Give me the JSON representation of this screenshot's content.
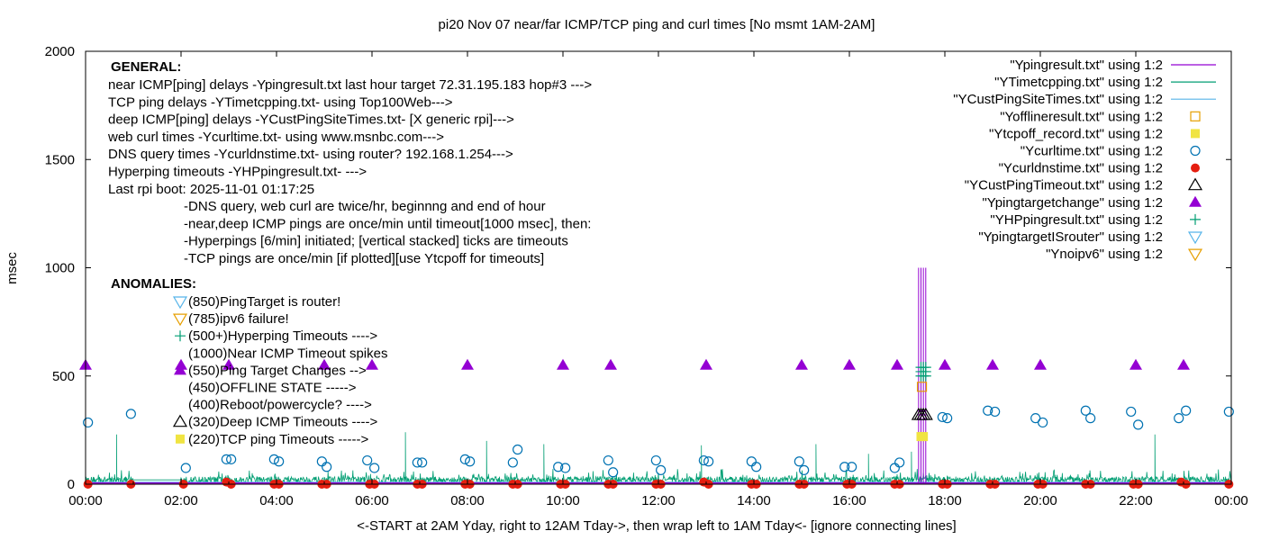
{
  "chart_data": {
    "type": "scatter",
    "title": "pi20 Nov 07  near/far ICMP/TCP ping and curl times [No msmt 1AM-2AM]",
    "xlabel": "<-START at 2AM Yday, right to 12AM Tday->, then wrap left to 1AM Tday<- [ignore connecting lines]",
    "ylabel": "msec",
    "xlim": [
      0,
      24
    ],
    "ylim": [
      0,
      2000
    ],
    "x_ticks": [
      {
        "v": 0,
        "label": "00:00"
      },
      {
        "v": 2,
        "label": "02:00"
      },
      {
        "v": 4,
        "label": "04:00"
      },
      {
        "v": 6,
        "label": "06:00"
      },
      {
        "v": 8,
        "label": "08:00"
      },
      {
        "v": 10,
        "label": "10:00"
      },
      {
        "v": 12,
        "label": "12:00"
      },
      {
        "v": 14,
        "label": "14:00"
      },
      {
        "v": 16,
        "label": "16:00"
      },
      {
        "v": 18,
        "label": "18:00"
      },
      {
        "v": 20,
        "label": "20:00"
      },
      {
        "v": 22,
        "label": "22:00"
      },
      {
        "v": 24,
        "label": "00:00"
      }
    ],
    "y_ticks": [
      {
        "v": 0,
        "label": "0"
      },
      {
        "v": 500,
        "label": "500"
      },
      {
        "v": 1000,
        "label": "1000"
      },
      {
        "v": 1500,
        "label": "1500"
      },
      {
        "v": 2000,
        "label": "2000"
      }
    ],
    "grid": false,
    "legend_position": "top-right",
    "legend": [
      {
        "name": "\"Ypingresult.txt\" using 1:2",
        "style": "line",
        "color": "#9400d3"
      },
      {
        "name": "\"YTimetcpping.txt\" using 1:2",
        "style": "line",
        "color": "#009e73"
      },
      {
        "name": "\"YCustPingSiteTimes.txt\" using 1:2",
        "style": "line",
        "color": "#56b4e9"
      },
      {
        "name": "\"Yofflineresult.txt\" using 1:2",
        "style": "open-square",
        "color": "#e69f00"
      },
      {
        "name": "\"Ytcpoff_record.txt\" using 1:2",
        "style": "filled-square",
        "color": "#f0e442"
      },
      {
        "name": "\"Ycurltime.txt\" using 1:2",
        "style": "open-circle",
        "color": "#0072b2"
      },
      {
        "name": "\"Ycurldnstime.txt\" using 1:2",
        "style": "filled-circle",
        "color": "#e51e10"
      },
      {
        "name": "\"YCustPingTimeout.txt\" using 1:2",
        "style": "open-triangle",
        "color": "#000000"
      },
      {
        "name": "\"Ypingtargetchange\" using 1:2",
        "style": "filled-triangle",
        "color": "#9400d3"
      },
      {
        "name": "\"YHPpingresult.txt\" using 1:2",
        "style": "plus",
        "color": "#009e73"
      },
      {
        "name": "\"YpingtargetISrouter\" using 1:2",
        "style": "open-triangle-down",
        "color": "#56b4e9"
      },
      {
        "name": "\"Ynoipv6\" using 1:2",
        "style": "open-triangle-down",
        "color": "#e69f00"
      }
    ],
    "series": [
      {
        "name": "\"Ypingtargetchange\" using 1:2",
        "marker": "filled-triangle",
        "color": "#9400d3",
        "x": [
          0,
          2,
          3,
          5,
          6,
          8,
          10,
          11,
          13,
          15,
          16,
          17,
          18,
          19,
          20,
          22,
          23
        ],
        "y": [
          550,
          550,
          550,
          550,
          550,
          550,
          550,
          550,
          550,
          550,
          550,
          550,
          550,
          550,
          550,
          550,
          550
        ]
      },
      {
        "name": "\"Ycurltime.txt\" using 1:2",
        "marker": "open-circle",
        "color": "#0072b2",
        "x": [
          0.05,
          0.95,
          2.1,
          2.95,
          3.05,
          3.95,
          4.05,
          4.95,
          5.05,
          5.9,
          6.05,
          6.95,
          7.05,
          7.95,
          8.05,
          8.95,
          9.05,
          9.9,
          10.05,
          10.95,
          11.05,
          11.95,
          12.05,
          12.95,
          13.05,
          13.95,
          14.05,
          14.95,
          15.05,
          15.9,
          16.05,
          16.95,
          17.05,
          17.95,
          18.05,
          18.9,
          19.05,
          19.9,
          20.05,
          20.95,
          21.05,
          21.9,
          22.05,
          22.9,
          23.05,
          23.95
        ],
        "y": [
          285,
          325,
          75,
          115,
          115,
          115,
          105,
          105,
          80,
          110,
          75,
          100,
          100,
          115,
          105,
          100,
          160,
          80,
          75,
          110,
          55,
          110,
          65,
          110,
          105,
          105,
          80,
          105,
          65,
          80,
          80,
          75,
          100,
          310,
          305,
          340,
          335,
          305,
          285,
          340,
          305,
          335,
          275,
          305,
          340,
          335
        ]
      },
      {
        "name": "\"Ycurldnstime.txt\" using 1:2",
        "marker": "filled-circle",
        "color": "#e51e10",
        "x": [
          0.05,
          0.95,
          2.05,
          2.95,
          3.05,
          3.95,
          4.05,
          4.95,
          5.05,
          5.95,
          6.05,
          6.95,
          7.05,
          7.95,
          8.05,
          8.95,
          9.05,
          9.95,
          10.05,
          10.95,
          11.05,
          11.95,
          12.05,
          12.95,
          13.05,
          13.95,
          14.05,
          14.95,
          15.05,
          15.95,
          16.05,
          16.95,
          17.05,
          17.95,
          18.05,
          18.95,
          19.05,
          19.95,
          20.05,
          20.95,
          21.05,
          21.95,
          22.05,
          22.95,
          23.05,
          23.95
        ],
        "y": [
          0,
          0,
          0,
          10,
          0,
          0,
          0,
          0,
          0,
          0,
          0,
          0,
          0,
          0,
          0,
          0,
          0,
          0,
          0,
          0,
          0,
          0,
          0,
          10,
          0,
          0,
          0,
          0,
          0,
          0,
          0,
          0,
          0,
          0,
          0,
          0,
          0,
          0,
          0,
          0,
          0,
          0,
          0,
          10,
          0,
          0
        ]
      },
      {
        "name": "\"YCustPingTimeout.txt\" using 1:2",
        "marker": "open-triangle",
        "color": "#000000",
        "x": [
          17.45,
          17.5,
          17.55,
          17.6
        ],
        "y": [
          320,
          320,
          320,
          320
        ]
      },
      {
        "name": "\"YHPpingresult.txt\" using 1:2",
        "marker": "plus",
        "color": "#009e73",
        "x": [
          17.5,
          17.5,
          17.5,
          17.55,
          17.55,
          17.55,
          17.6,
          17.6,
          17.6
        ],
        "y": [
          500,
          520,
          540,
          500,
          520,
          540,
          500,
          520,
          540
        ]
      },
      {
        "name": "\"Ytcpoff_record.txt\" using 1:2",
        "marker": "filled-square",
        "color": "#f0e442",
        "x": [
          17.5,
          17.55
        ],
        "y": [
          220,
          220
        ]
      },
      {
        "name": "\"Yofflineresult.txt\" using 1:2",
        "marker": "open-square",
        "color": "#e69f00",
        "x": [
          17.52
        ],
        "y": [
          450
        ]
      }
    ],
    "ping_spike_x": [
      17.45,
      17.5,
      17.55,
      17.6
    ],
    "ping_spike_ylim": [
      0,
      1000
    ],
    "ping_baseline_y": 5,
    "tcp_noise": {
      "xlim": [
        0,
        24
      ],
      "gap": [
        1,
        2
      ],
      "baseline": 20,
      "min": 0,
      "max": 80,
      "spikes": [
        {
          "x": 0.65,
          "y": 230
        },
        {
          "x": 6.7,
          "y": 240
        },
        {
          "x": 8.4,
          "y": 200
        },
        {
          "x": 9.6,
          "y": 185
        },
        {
          "x": 12.9,
          "y": 180
        },
        {
          "x": 15.3,
          "y": 185
        },
        {
          "x": 16.4,
          "y": 140
        },
        {
          "x": 17.3,
          "y": 150
        },
        {
          "x": 22.4,
          "y": 230
        }
      ]
    }
  },
  "annotations": {
    "general_title": "GENERAL:",
    "general_lines": [
      "near ICMP[ping] delays -Ypingresult.txt last hour target 72.31.195.183 hop#3 --->",
      "TCP ping delays -YTimetcpping.txt- using Top100Web--->",
      "deep ICMP[ping] delays -YCustPingSiteTimes.txt- [X generic rpi]--->",
      "web curl times -Ycurltime.txt- using www.msnbc.com--->",
      "DNS query times -Ycurldnstime.txt- using router? 192.168.1.254--->",
      "Hyperping timeouts -YHPpingresult.txt- --->",
      "Last rpi boot: 2025-11-01 01:17:25"
    ],
    "general_notes": [
      "-DNS query, web curl are twice/hr, beginnng and end of hour",
      "-near,deep ICMP pings are once/min until timeout[1000 msec], then:",
      "  -Hyperpings [6/min] initiated; [vertical stacked] ticks are timeouts",
      "-TCP pings are once/min [if plotted][use Ytcpoff for timeouts]"
    ],
    "anomalies_title": "ANOMALIES:",
    "anomalies": [
      {
        "text": "(850)PingTarget is router!",
        "marker": "open-triangle-down",
        "color": "#56b4e9"
      },
      {
        "text": "(785)ipv6 failure!",
        "marker": "open-triangle-down",
        "color": "#e69f00"
      },
      {
        "text": "(500+)Hyperping Timeouts ---->",
        "marker": "plus",
        "color": "#009e73"
      },
      {
        "text": "(1000)Near ICMP Timeout spikes",
        "marker": "",
        "color": ""
      },
      {
        "text": "(550)Ping Target Changes -->",
        "marker": "filled-triangle",
        "color": "#9400d3"
      },
      {
        "text": "(450)OFFLINE STATE ----->",
        "marker": "",
        "color": ""
      },
      {
        "text": "(400)Reboot/powercycle? ---->",
        "marker": "",
        "color": ""
      },
      {
        "text": "(320)Deep ICMP Timeouts ---->",
        "marker": "open-triangle",
        "color": "#000000"
      },
      {
        "text": "(220)TCP ping Timeouts ----->",
        "marker": "filled-square",
        "color": "#f0e442"
      }
    ]
  }
}
